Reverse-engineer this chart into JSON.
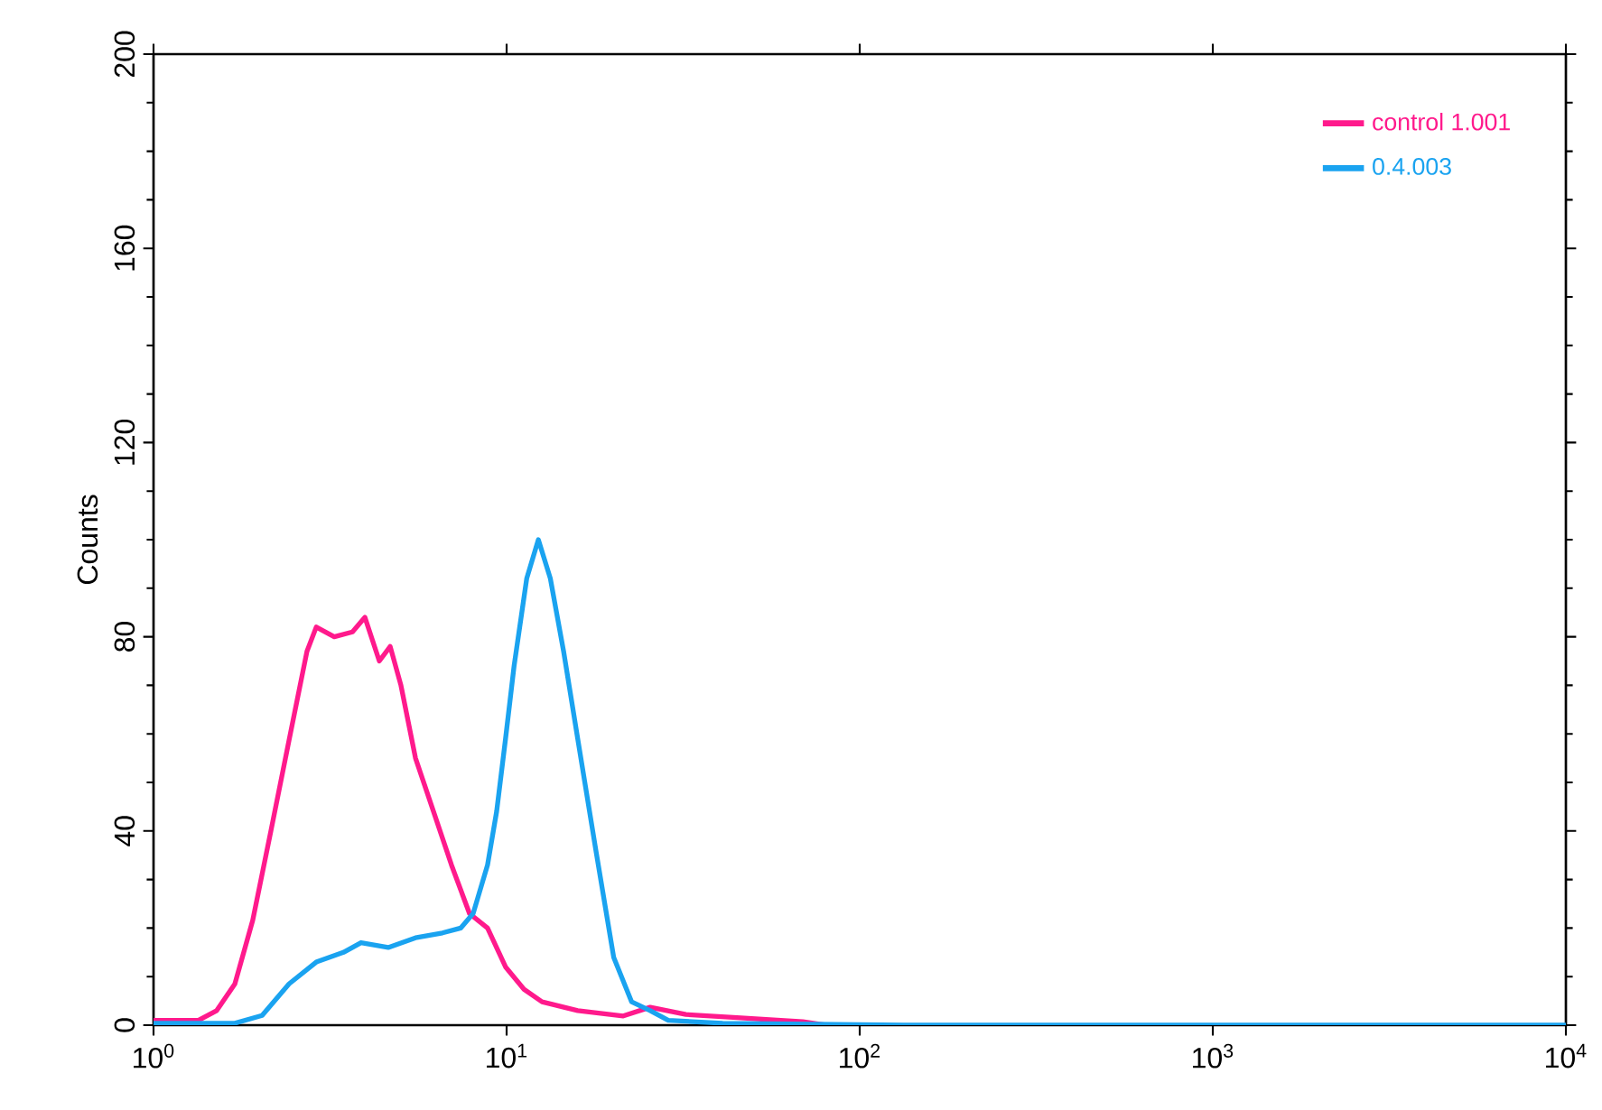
{
  "chart_data": {
    "type": "line",
    "ylabel": "Counts",
    "log": "x",
    "xlim": [
      1,
      10000
    ],
    "ylim": [
      0,
      200
    ],
    "xticks": [
      {
        "value": 1,
        "label": "10$^{0}$"
      },
      {
        "value": 10,
        "label": "10$^{1}$"
      },
      {
        "value": 100,
        "label": "10$^{2}$"
      },
      {
        "value": 1000,
        "label": "10$^{3}$"
      },
      {
        "value": 10000,
        "label": "10$^{4}$"
      }
    ],
    "yticks": [
      0,
      40,
      80,
      120,
      160,
      200
    ],
    "grid": false,
    "legend": "top right",
    "marker": "none",
    "line_style": "solid",
    "series": [
      {
        "name": "control 1.001",
        "color": "#ff1a8c",
        "x": [
          1,
          1.34,
          1.51,
          1.7,
          1.91,
          2.15,
          2.42,
          2.72,
          2.89,
          3.25,
          3.66,
          3.97,
          4.36,
          4.68,
          5.02,
          5.52,
          6.21,
          6.98,
          7.85,
          8.83,
          9.93,
          11.2,
          12.6,
          15.9,
          21.4,
          25.5,
          32.2,
          46,
          69,
          80
        ],
        "values": [
          1,
          1,
          3,
          8.5,
          21.6,
          40,
          58.7,
          77,
          82,
          80,
          81,
          84,
          75,
          78,
          70,
          55,
          44,
          33,
          23,
          20,
          12,
          7.4,
          4.8,
          3,
          1.9,
          3.7,
          2.2,
          1.5,
          0.7,
          0
        ]
      },
      {
        "name": "0.4.003",
        "color": "#1aa3f0",
        "x": [
          1,
          1.7,
          2.03,
          2.42,
          2.89,
          3.45,
          3.87,
          4.62,
          5.52,
          6.58,
          7.41,
          8.04,
          8.83,
          9.37,
          9.93,
          10.5,
          11.4,
          12.3,
          13.3,
          14.5,
          15.9,
          17.9,
          20.1,
          22.6,
          25.5,
          28.7,
          40.9,
          133,
          10000
        ],
        "values": [
          0.4,
          0.4,
          2,
          8.5,
          13,
          15,
          17,
          16,
          18,
          19,
          20,
          23,
          33,
          44,
          59,
          74,
          92,
          100,
          92,
          77,
          59,
          36,
          14,
          4.8,
          3,
          1,
          0.4,
          0,
          0
        ]
      }
    ]
  }
}
